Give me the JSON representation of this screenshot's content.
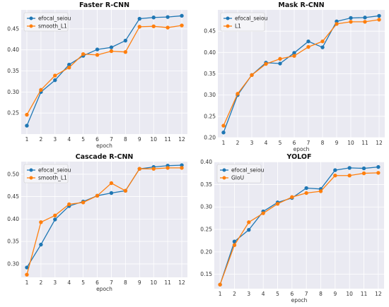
{
  "colors": {
    "series_a": "#1f77b4",
    "series_b": "#ff7f0e"
  },
  "chart_data": [
    {
      "type": "line",
      "title": "Faster R-CNN",
      "xlabel": "epoch",
      "ylabel": "",
      "x": [
        1,
        2,
        3,
        4,
        5,
        6,
        7,
        8,
        9,
        10,
        11,
        12
      ],
      "ylim": [
        0.2,
        0.495
      ],
      "yticks": [
        0.25,
        0.3,
        0.35,
        0.4,
        0.45
      ],
      "ytick_labels": [
        "0.25",
        "0.30",
        "0.35",
        "0.40",
        "0.45"
      ],
      "grid": true,
      "legend": "top-left",
      "series": [
        {
          "name": "efocal_seiou",
          "values": [
            0.22,
            0.3,
            0.328,
            0.365,
            0.386,
            0.401,
            0.406,
            0.422,
            0.474,
            0.477,
            0.478,
            0.481
          ]
        },
        {
          "name": "smooth_L1",
          "values": [
            0.246,
            0.305,
            0.339,
            0.358,
            0.39,
            0.388,
            0.397,
            0.395,
            0.455,
            0.456,
            0.453,
            0.458
          ]
        }
      ]
    },
    {
      "type": "line",
      "title": "Mask R-CNN",
      "xlabel": "epoch",
      "ylabel": "",
      "x": [
        1,
        2,
        3,
        4,
        5,
        6,
        7,
        8,
        9,
        10,
        11,
        12
      ],
      "ylim": [
        0.2,
        0.5
      ],
      "yticks": [
        0.2,
        0.25,
        0.3,
        0.35,
        0.4,
        0.45
      ],
      "ytick_labels": [
        "0.20",
        "0.25",
        "0.30",
        "0.35",
        "0.40",
        "0.45"
      ],
      "grid": true,
      "legend": "top-left",
      "series": [
        {
          "name": "efocal_seiou",
          "values": [
            0.212,
            0.3,
            0.347,
            0.376,
            0.374,
            0.399,
            0.426,
            0.412,
            0.473,
            0.481,
            0.482,
            0.486
          ]
        },
        {
          "name": "L1",
          "values": [
            0.228,
            0.303,
            0.347,
            0.373,
            0.385,
            0.392,
            0.413,
            0.426,
            0.467,
            0.472,
            0.472,
            0.477
          ]
        }
      ]
    },
    {
      "type": "line",
      "title": "Cascade R-CNN",
      "xlabel": "epoch",
      "ylabel": "",
      "x": [
        1,
        2,
        3,
        4,
        5,
        6,
        7,
        8,
        9,
        10,
        11,
        12
      ],
      "ylim": [
        0.27,
        0.528
      ],
      "yticks": [
        0.3,
        0.35,
        0.4,
        0.45,
        0.5
      ],
      "ytick_labels": [
        "0.30",
        "0.35",
        "0.40",
        "0.45",
        "0.50"
      ],
      "grid": true,
      "legend": "top-left",
      "series": [
        {
          "name": "efocal_seiou",
          "values": [
            0.292,
            0.343,
            0.399,
            0.429,
            0.439,
            0.452,
            0.458,
            0.463,
            0.512,
            0.516,
            0.519,
            0.52
          ]
        },
        {
          "name": "smooth_L1",
          "values": [
            0.276,
            0.393,
            0.408,
            0.433,
            0.437,
            0.452,
            0.48,
            0.463,
            0.512,
            0.512,
            0.514,
            0.514
          ]
        }
      ]
    },
    {
      "type": "line",
      "title": "YOLOF",
      "xlabel": "epoch",
      "ylabel": "",
      "x": [
        1,
        2,
        3,
        4,
        5,
        6,
        7,
        8,
        9,
        10,
        11,
        12
      ],
      "ylim": [
        0.118,
        0.401
      ],
      "yticks": [
        0.15,
        0.2,
        0.25,
        0.3,
        0.35,
        0.4
      ],
      "ytick_labels": [
        "0.15",
        "0.20",
        "0.25",
        "0.30",
        "0.35",
        "0.40"
      ],
      "grid": true,
      "legend": "top-left",
      "series": [
        {
          "name": "efocal_seiou",
          "values": [
            0.127,
            0.223,
            0.249,
            0.29,
            0.31,
            0.32,
            0.342,
            0.34,
            0.382,
            0.387,
            0.386,
            0.389
          ]
        },
        {
          "name": "GIoU",
          "values": [
            0.127,
            0.215,
            0.266,
            0.286,
            0.307,
            0.322,
            0.331,
            0.335,
            0.37,
            0.37,
            0.375,
            0.376
          ]
        }
      ]
    }
  ]
}
